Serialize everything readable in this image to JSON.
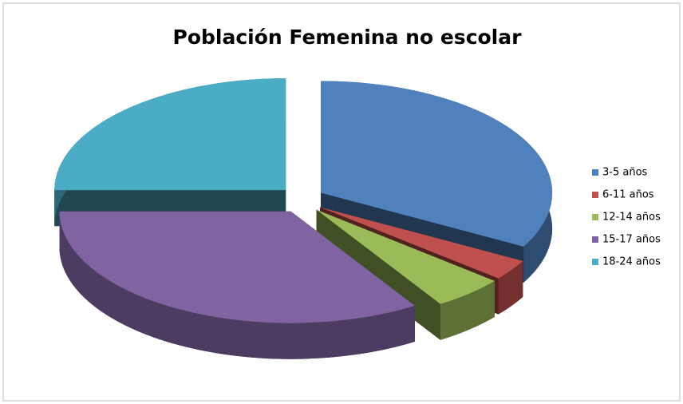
{
  "chart_data": {
    "type": "pie3d",
    "title": "Población Femenina no escolar",
    "categories": [
      "3-5 años",
      "6-11 años",
      "12-14 años",
      "15-17 años",
      "18-24 años"
    ],
    "values": [
      33,
      3,
      5,
      34,
      25
    ],
    "colors": [
      "#4f81bd",
      "#c0504d",
      "#9bbb59",
      "#8064a2",
      "#4bacc6"
    ],
    "legend": "right"
  }
}
